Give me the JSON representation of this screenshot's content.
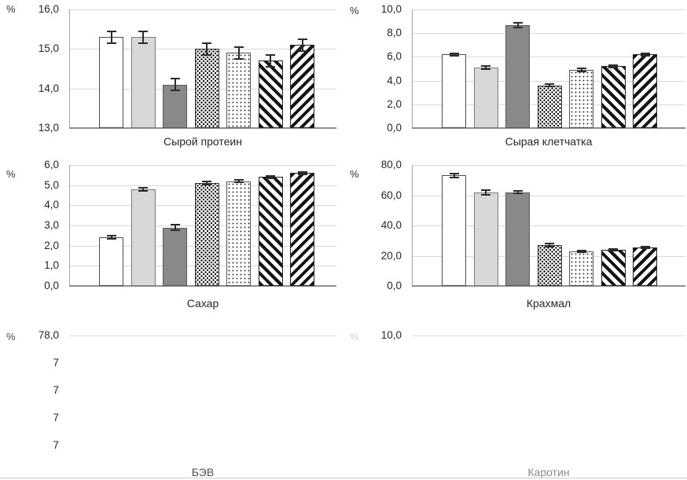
{
  "figure": {
    "unit": "%",
    "patterns": [
      {
        "name": "white-solid-bar",
        "fill": "#ffffff"
      },
      {
        "name": "light-gray-solid-bar",
        "fill": "#d8d8d8"
      },
      {
        "name": "dark-gray-solid-bar",
        "fill": "#898989"
      },
      {
        "name": "dense-black-dots-bar",
        "fill": "pattern-dense-dots"
      },
      {
        "name": "sparse-dots-bar",
        "fill": "pattern-sparse-dots"
      },
      {
        "name": "diagonal-backslash-stripes-bar",
        "fill": "pattern-diagonal-backslash"
      },
      {
        "name": "diagonal-forward-stripes-bar",
        "fill": "pattern-diagonal-forward"
      }
    ],
    "grid_color": "#d9d9d9",
    "error_bar_color": "#2b2b2b"
  },
  "chart_data": [
    {
      "type": "bar",
      "title": "Сырой протеин",
      "ylabel": "%",
      "ylim": [
        13.0,
        16.0
      ],
      "yticks": [
        "16,0",
        "15,0",
        "14,0",
        "13,0"
      ],
      "values": [
        15.3,
        15.3,
        14.1,
        15.0,
        14.9,
        14.7,
        15.1
      ],
      "errors": [
        0.15,
        0.15,
        0.15,
        0.15,
        0.15,
        0.15,
        0.15
      ],
      "grid": true,
      "legend": "none"
    },
    {
      "type": "bar",
      "title": "Сырая клетчатка",
      "ylabel": "%",
      "ylim": [
        0.0,
        10.0
      ],
      "yticks": [
        "10,0",
        "8,0",
        "6,0",
        "4,0",
        "2,0",
        "0,0"
      ],
      "values": [
        6.2,
        5.1,
        8.7,
        3.6,
        4.9,
        5.2,
        6.2
      ],
      "errors": [
        0.1,
        0.15,
        0.2,
        0.1,
        0.15,
        0.12,
        0.1
      ],
      "grid": true,
      "legend": "none"
    },
    {
      "type": "bar",
      "title": "Сахар",
      "ylabel": "%",
      "ylim": [
        0.0,
        6.0
      ],
      "yticks": [
        "6,0",
        "5,0",
        "4,0",
        "3,0",
        "2,0",
        "1,0",
        "0,0"
      ],
      "values": [
        2.4,
        4.8,
        2.9,
        5.1,
        5.2,
        5.4,
        5.6
      ],
      "errors": [
        0.08,
        0.08,
        0.12,
        0.08,
        0.07,
        0.06,
        0.05
      ],
      "grid": true,
      "legend": "none"
    },
    {
      "type": "bar",
      "title": "Крахмал",
      "ylabel": "%",
      "ylim": [
        0.0,
        80.0
      ],
      "yticks": [
        "80,0",
        "60,0",
        "40,0",
        "20,0",
        "0,0"
      ],
      "values": [
        73.0,
        62.0,
        62.0,
        27.0,
        23.0,
        24.0,
        25.5
      ],
      "errors": [
        1.2,
        1.5,
        0.9,
        1.0,
        0.6,
        0.5,
        0.6
      ],
      "grid": true,
      "legend": "none"
    },
    {
      "type": "bar",
      "title": "БЭВ",
      "ylabel": "%",
      "partial": true,
      "yticks": [
        "78,0",
        "7",
        "7",
        "7",
        "7"
      ],
      "values": [],
      "errors": [],
      "grid": true,
      "legend": "none"
    },
    {
      "type": "bar",
      "title": "Каротин",
      "ylabel": "%",
      "partial": true,
      "yticks": [
        "10,0"
      ],
      "values": [],
      "errors": [],
      "grid": true,
      "legend": "none"
    }
  ]
}
